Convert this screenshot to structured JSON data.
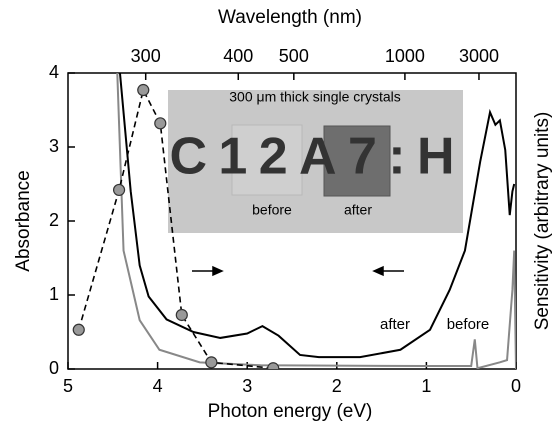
{
  "chart_data": {
    "type": "line",
    "x_label": "Photon energy (eV)",
    "y_label": "Absorbance",
    "x2_label": "Wavelength (nm)",
    "y2_label": "Sensitivity (arbitrary units)",
    "xlim": [
      5,
      0
    ],
    "xticks": [
      5,
      4,
      3,
      2,
      1,
      0
    ],
    "ylim": [
      0,
      4
    ],
    "yticks": [
      0,
      1,
      2,
      3,
      4
    ],
    "x2ticks": [
      300,
      400,
      500,
      1000,
      3000
    ],
    "series": [
      {
        "name": "after",
        "color": "#000000",
        "style": "solid",
        "x": [
          4.42,
          4.3,
          4.2,
          4.1,
          3.9,
          3.6,
          3.3,
          3.0,
          2.83,
          2.65,
          2.41,
          2.2,
          1.74,
          1.29,
          0.96,
          0.74,
          0.57,
          0.4,
          0.29,
          0.23,
          0.18,
          0.12,
          0.07,
          0.04,
          0.02
        ],
        "values": [
          4.0,
          2.4,
          1.4,
          0.98,
          0.67,
          0.5,
          0.42,
          0.48,
          0.58,
          0.45,
          0.19,
          0.16,
          0.16,
          0.26,
          0.53,
          1.07,
          1.6,
          2.8,
          3.47,
          3.3,
          3.36,
          2.96,
          2.08,
          2.4,
          2.5
        ]
      },
      {
        "name": "before",
        "color": "#888888",
        "style": "solid",
        "x": [
          4.45,
          4.38,
          4.2,
          3.98,
          3.53,
          2.85,
          1.0,
          0.5,
          0.46,
          0.43,
          0.18,
          0.1,
          0.04,
          0.02,
          0.0
        ],
        "values": [
          4.0,
          1.6,
          0.66,
          0.26,
          0.09,
          0.05,
          0.04,
          0.04,
          0.4,
          0.01,
          0.09,
          0.12,
          1.07,
          1.6,
          0.0
        ]
      },
      {
        "color": "#000000",
        "style": "dashed",
        "marker": "circle",
        "marker_color": "#999999",
        "x": [
          4.88,
          4.43,
          4.16,
          3.97,
          3.73,
          3.4,
          2.71
        ],
        "values": [
          0.53,
          2.42,
          3.77,
          3.32,
          0.73,
          0.09,
          0.01
        ]
      }
    ],
    "inset": {
      "caption": "300 μm thick single crystals",
      "label": "C12A7:H",
      "samples": [
        "before",
        "after"
      ]
    }
  }
}
